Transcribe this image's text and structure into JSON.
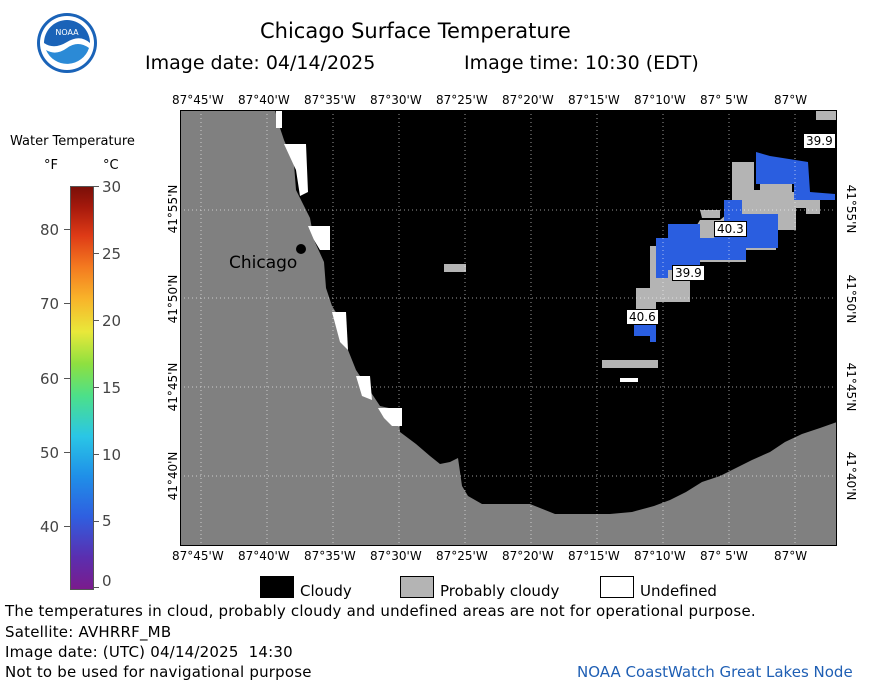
{
  "header": {
    "title": "Chicago Surface Temperature",
    "image_date": "Image date: 04/14/2025",
    "image_time": "Image time: 10:30 (EDT)"
  },
  "logo": {
    "text": "NOAA",
    "icon": "noaa-logo-icon"
  },
  "colorbar": {
    "title": "Water Temperature",
    "unit_f": "°F",
    "unit_c": "°C",
    "f_ticks": [
      "80",
      "70",
      "60",
      "50",
      "40"
    ],
    "c_ticks": [
      "30",
      "25",
      "20",
      "15",
      "10",
      "5",
      "0"
    ]
  },
  "axes": {
    "lon_labels": [
      "87°45'W",
      "87°40'W",
      "87°35'W",
      "87°30'W",
      "87°25'W",
      "87°20'W",
      "87°15'W",
      "87°10'W",
      "87° 5'W",
      "87°W"
    ],
    "lat_labels": [
      "41°55'N",
      "41°50'N",
      "41°45'N",
      "41°40'N"
    ]
  },
  "map": {
    "city_label": "Chicago",
    "temp_labels": [
      "39.9",
      "40.3",
      "39.9",
      "40.6"
    ],
    "colors": {
      "cloudy": "#000000",
      "probably_cloudy": "#b4b4b4",
      "undefined": "#ffffff",
      "land": "#808080",
      "water_40": "#2a5ee0"
    }
  },
  "legend": {
    "cloudy": "Cloudy",
    "probably_cloudy": "Probably cloudy",
    "undefined": "Undefined"
  },
  "footer": {
    "disclaimer": "The temperatures in cloud, probably cloudy and undefined areas are not for operational purpose.",
    "satellite": "Satellite: AVHRRF_MB",
    "utc_date": "Image date: (UTC) 04/14/2025  14:30",
    "nav_warning": "Not to be used for navigational purpose",
    "credit": "NOAA CoastWatch Great Lakes Node"
  }
}
